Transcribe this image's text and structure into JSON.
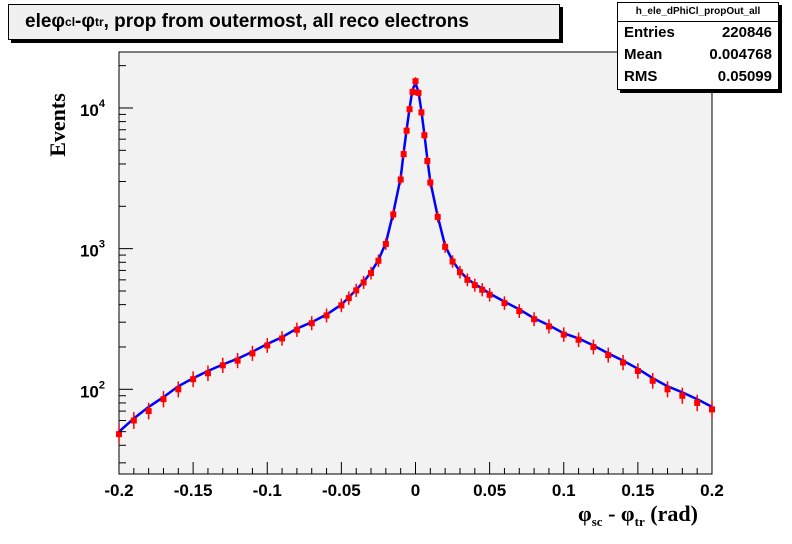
{
  "title": {
    "main": "ele ",
    "phi1": "φ",
    "sub1": "cl",
    "dash": " - ",
    "phi2": "φ",
    "sub2": "tr",
    "rest": ", prop from outermost, all reco electrons"
  },
  "stats": {
    "name": "h_ele_dPhiCl_propOut_all",
    "rows": [
      {
        "label": "Entries",
        "value": "220846"
      },
      {
        "label": "Mean",
        "value": "0.004768"
      },
      {
        "label": "RMS",
        "value": "0.05099"
      }
    ]
  },
  "chart_data": {
    "type": "line",
    "title": "ele φcl - φtr, prop from outermost, all reco electrons",
    "xlabel": "φsc - φtr (rad)",
    "ylabel": "Events",
    "xlim": [
      -0.2,
      0.2
    ],
    "ylim": [
      25,
      25000
    ],
    "yscale": "log",
    "xticks": [
      "-0.2",
      "-0.15",
      "-0.1",
      "-0.05",
      "0",
      "0.05",
      "0.1",
      "0.15",
      "0.2"
    ],
    "yticks": [
      {
        "base": "10",
        "exp": "2",
        "value": 100
      },
      {
        "base": "10",
        "exp": "3",
        "value": 1000
      },
      {
        "base": "10",
        "exp": "4",
        "value": 10000
      }
    ],
    "grid": false,
    "series": [
      {
        "color": "#0000ff",
        "style": "line",
        "x": [
          -0.2,
          -0.19,
          -0.18,
          -0.17,
          -0.16,
          -0.15,
          -0.14,
          -0.13,
          -0.12,
          -0.11,
          -0.1,
          -0.09,
          -0.08,
          -0.07,
          -0.06,
          -0.05,
          -0.045,
          -0.04,
          -0.035,
          -0.03,
          -0.025,
          -0.02,
          -0.015,
          -0.01,
          -0.008,
          -0.006,
          -0.004,
          -0.002,
          0,
          0.002,
          0.004,
          0.006,
          0.008,
          0.01,
          0.015,
          0.02,
          0.025,
          0.03,
          0.035,
          0.04,
          0.045,
          0.05,
          0.06,
          0.07,
          0.08,
          0.09,
          0.1,
          0.11,
          0.12,
          0.13,
          0.14,
          0.15,
          0.16,
          0.17,
          0.18,
          0.19,
          0.2
        ],
        "y": [
          50,
          62,
          75,
          88,
          105,
          120,
          135,
          150,
          165,
          185,
          210,
          235,
          270,
          300,
          340,
          400,
          450,
          510,
          580,
          680,
          830,
          1100,
          1800,
          3200,
          4800,
          7000,
          10000,
          13500,
          15000,
          13000,
          9500,
          6500,
          4300,
          3000,
          1700,
          1050,
          820,
          690,
          610,
          560,
          520,
          480,
          420,
          370,
          320,
          285,
          250,
          230,
          205,
          180,
          160,
          140,
          120,
          105,
          95,
          85,
          75
        ]
      },
      {
        "color": "#ff0000",
        "style": "markers",
        "x": [
          -0.2,
          -0.19,
          -0.18,
          -0.17,
          -0.16,
          -0.15,
          -0.14,
          -0.13,
          -0.12,
          -0.11,
          -0.1,
          -0.09,
          -0.08,
          -0.07,
          -0.06,
          -0.05,
          -0.045,
          -0.04,
          -0.035,
          -0.03,
          -0.025,
          -0.02,
          -0.015,
          -0.01,
          -0.008,
          -0.006,
          -0.004,
          -0.002,
          0,
          0.002,
          0.004,
          0.006,
          0.008,
          0.01,
          0.015,
          0.02,
          0.025,
          0.03,
          0.035,
          0.04,
          0.045,
          0.05,
          0.06,
          0.07,
          0.08,
          0.09,
          0.1,
          0.11,
          0.12,
          0.13,
          0.14,
          0.15,
          0.16,
          0.17,
          0.18,
          0.19,
          0.2
        ],
        "y": [
          48,
          60,
          70,
          85,
          100,
          118,
          130,
          148,
          160,
          180,
          205,
          230,
          265,
          295,
          335,
          395,
          445,
          505,
          575,
          670,
          820,
          1080,
          1750,
          3100,
          4700,
          6900,
          9800,
          13000,
          15500,
          12800,
          9300,
          6400,
          4200,
          2950,
          1680,
          1030,
          810,
          680,
          600,
          550,
          510,
          470,
          410,
          360,
          315,
          280,
          245,
          225,
          200,
          175,
          155,
          135,
          115,
          100,
          90,
          80,
          72
        ]
      }
    ]
  }
}
